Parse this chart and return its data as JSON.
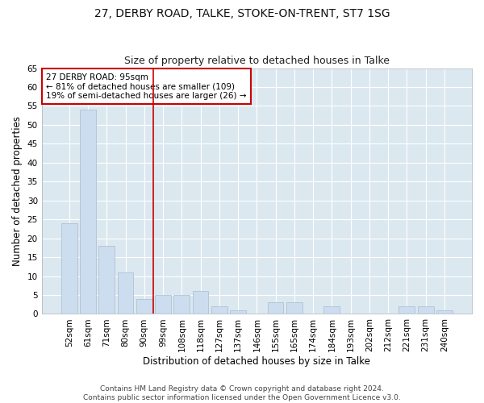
{
  "title1": "27, DERBY ROAD, TALKE, STOKE-ON-TRENT, ST7 1SG",
  "title2": "Size of property relative to detached houses in Talke",
  "xlabel": "Distribution of detached houses by size in Talke",
  "ylabel": "Number of detached properties",
  "categories": [
    "52sqm",
    "61sqm",
    "71sqm",
    "80sqm",
    "90sqm",
    "99sqm",
    "108sqm",
    "118sqm",
    "127sqm",
    "137sqm",
    "146sqm",
    "155sqm",
    "165sqm",
    "174sqm",
    "184sqm",
    "193sqm",
    "202sqm",
    "212sqm",
    "221sqm",
    "231sqm",
    "240sqm"
  ],
  "values": [
    24,
    54,
    18,
    11,
    4,
    5,
    5,
    6,
    2,
    1,
    0,
    3,
    3,
    0,
    2,
    0,
    0,
    0,
    2,
    2,
    1
  ],
  "bar_color": "#ccddef",
  "bar_edge_color": "#aabbcc",
  "bg_color": "#dce8f0",
  "grid_color": "#ffffff",
  "vline_x": 4.5,
  "vline_color": "#cc0000",
  "annotation_line1": "27 DERBY ROAD: 95sqm",
  "annotation_line2": "← 81% of detached houses are smaller (109)",
  "annotation_line3": "19% of semi-detached houses are larger (26) →",
  "annotation_box_color": "#cc0000",
  "annotation_box_bg": "#ffffff",
  "ylim": [
    0,
    65
  ],
  "yticks": [
    0,
    5,
    10,
    15,
    20,
    25,
    30,
    35,
    40,
    45,
    50,
    55,
    60,
    65
  ],
  "footer1": "Contains HM Land Registry data © Crown copyright and database right 2024.",
  "footer2": "Contains public sector information licensed under the Open Government Licence v3.0.",
  "title1_fontsize": 10,
  "title2_fontsize": 9,
  "xlabel_fontsize": 8.5,
  "ylabel_fontsize": 8.5,
  "tick_fontsize": 7.5,
  "footer_fontsize": 6.5,
  "annotation_fontsize": 7.5
}
